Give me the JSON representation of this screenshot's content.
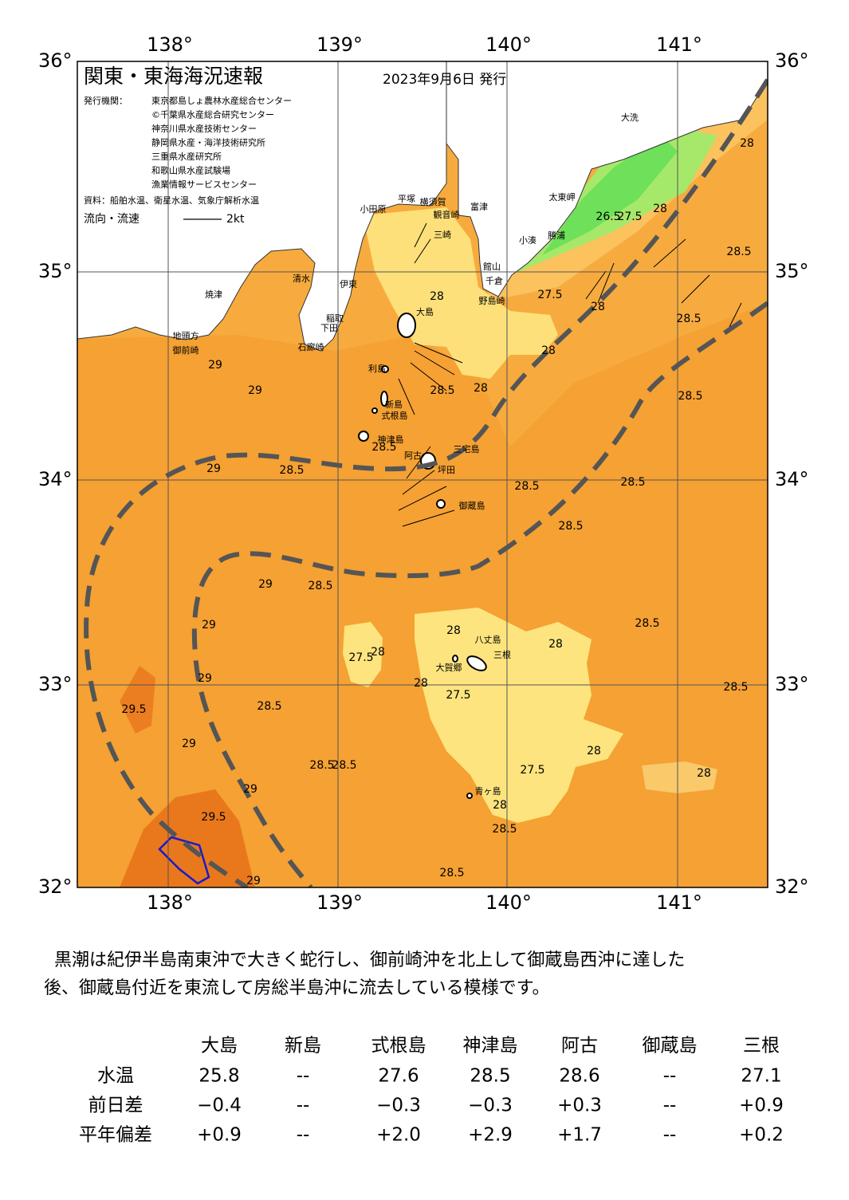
{
  "header": {
    "title": "関東・東海海況速報",
    "date": "2023年9月6日 発行",
    "issuer_label": "発行機関：",
    "issuers": [
      "東京都島しょ農林水産総合センター",
      "©千葉県水産総合研究センター",
      "神奈川県水産技術センター",
      "静岡県水産・海洋技術研究所",
      "三重県水産研究所",
      "和歌山県水産試験場",
      "漁業情報サービスセンター"
    ],
    "source": "資料：船舶水温、衛星水温、気象庁解析水温",
    "flow_label": "流向・流速",
    "flow_scale": "2kt"
  },
  "axes": {
    "lon": [
      "138°",
      "139°",
      "140°",
      "141°"
    ],
    "lat": [
      "36°",
      "35°",
      "34°",
      "33°",
      "32°"
    ]
  },
  "places": [
    "大洗",
    "太東岬",
    "小湊",
    "勝浦",
    "館山",
    "千倉",
    "野島崎",
    "富津",
    "横須賀",
    "観音崎",
    "平塚",
    "小田原",
    "三崎",
    "伊東",
    "稲取",
    "下田",
    "石廊崎",
    "御前崎",
    "地頭方",
    "焼津",
    "清水",
    "大島",
    "利島",
    "新島",
    "式根島",
    "神津島",
    "三宅島",
    "阿古",
    "坪田",
    "御蔵島",
    "八丈島",
    "三根",
    "大賀郷",
    "青ヶ島"
  ],
  "contours": [
    "28",
    "28",
    "28",
    "28.5",
    "28.5",
    "29",
    "29",
    "29",
    "28.5",
    "28.5",
    "28.5",
    "28.5",
    "29",
    "29",
    "29",
    "28.5",
    "29.5",
    "29",
    "28.5",
    "28.5",
    "29",
    "29.5",
    "29",
    "28.5",
    "28.5",
    "28",
    "27.5",
    "28",
    "28",
    "27.5",
    "28",
    "27.5",
    "28",
    "28",
    "28",
    "28.5",
    "28.5",
    "28.5",
    "28.5",
    "28.5",
    "28",
    "28",
    "27.5",
    "26.5",
    "27.5",
    "28",
    "28.5"
  ],
  "description": [
    "黒潮は紀伊半島南東沖で大きく蛇行し、御前崎沖を北上して御蔵島西沖に達した",
    "後、御蔵島付近を東流して房総半島沖に流去している模様です。"
  ],
  "table": {
    "header": [
      "大島",
      "新島",
      "式根島",
      "神津島",
      "阿古",
      "御蔵島",
      "三根"
    ],
    "rows": [
      [
        "水温",
        "25.8",
        "--",
        "27.6",
        "28.5",
        "28.6",
        "--",
        "27.1"
      ],
      [
        "前日差",
        "−0.4",
        "--",
        "−0.3",
        "−0.3",
        "+0.3",
        "--",
        "+0.9"
      ],
      [
        "平年偏差",
        "+0.9",
        "--",
        "+2.0",
        "+2.9",
        "+1.7",
        "--",
        "+0.2"
      ]
    ]
  }
}
